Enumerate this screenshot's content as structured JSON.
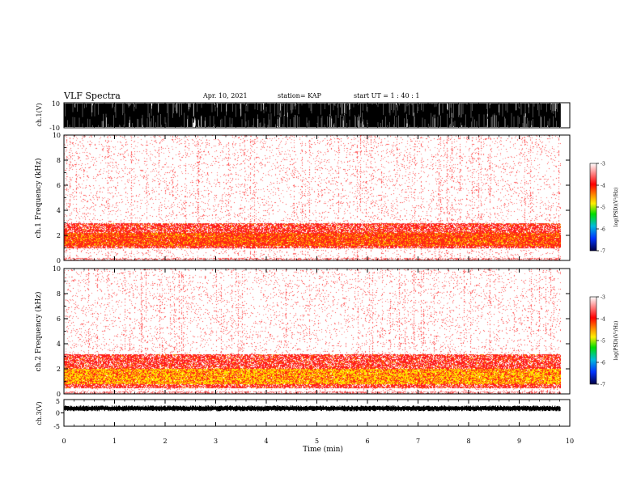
{
  "header": {
    "title": "VLF Spectra",
    "date": "Apr. 10, 2021",
    "station": "station= KAP",
    "start": "start  UT =   1 : 40 : 1"
  },
  "colors": {
    "spectrum_background": "#ffffff",
    "spectrum_low": "#ff4040",
    "spectrum_mid": "#ff8800",
    "spectrum_high": "#ffee00",
    "waveform": "#000000"
  },
  "chart_data": [
    {
      "type": "line",
      "panel": "ch1-waveform",
      "ylabel": "ch.1(V)",
      "ylim": [
        -10,
        10
      ],
      "yticks": [
        "10",
        "-10"
      ],
      "note_level": "dense full-scale waveform, saturating +/-10 V"
    },
    {
      "type": "heatmap",
      "panel": "ch1-spectrogram",
      "ylabel": "ch.1  Frequency (kHz)",
      "ylim": [
        0,
        10
      ],
      "yticks": [
        "0",
        "2",
        "4",
        "6",
        "8",
        "10"
      ],
      "band_kHz": [
        1.0,
        3.0
      ],
      "strong_band_kHz": [
        1.2,
        2.2
      ],
      "colorbar": {
        "label": "log(PSD)(V²/Hz)",
        "range": [
          -7,
          -3
        ],
        "ticks": [
          "-3",
          "-4",
          "-5",
          "-6",
          "-7"
        ]
      }
    },
    {
      "type": "heatmap",
      "panel": "ch2-spectrogram",
      "ylabel": "ch.2  Frequency (kHz)",
      "ylim": [
        0,
        10
      ],
      "yticks": [
        "0",
        "2",
        "4",
        "6",
        "8",
        "10"
      ],
      "band_kHz": [
        0.5,
        3.2
      ],
      "strong_band_kHz": [
        0.8,
        2.0
      ],
      "colorbar": {
        "label": "log(PSD)(V²/Hz)",
        "range": [
          -7,
          -3
        ],
        "ticks": [
          "-3",
          "-4",
          "-5",
          "-6",
          "-7"
        ]
      }
    },
    {
      "type": "line",
      "panel": "ch3-waveform",
      "ylabel": "ch.3(V)",
      "ylim": [
        -5,
        5
      ],
      "yticks": [
        "5",
        "0",
        "-5"
      ],
      "level_V": [
        1.2,
        2.2
      ]
    }
  ],
  "xaxis": {
    "label": "Time (min)",
    "ticks": [
      "0",
      "1",
      "2",
      "3",
      "4",
      "5",
      "6",
      "7",
      "8",
      "9",
      "10"
    ],
    "xlim": [
      0,
      10
    ],
    "data_end_min": 9.82
  }
}
